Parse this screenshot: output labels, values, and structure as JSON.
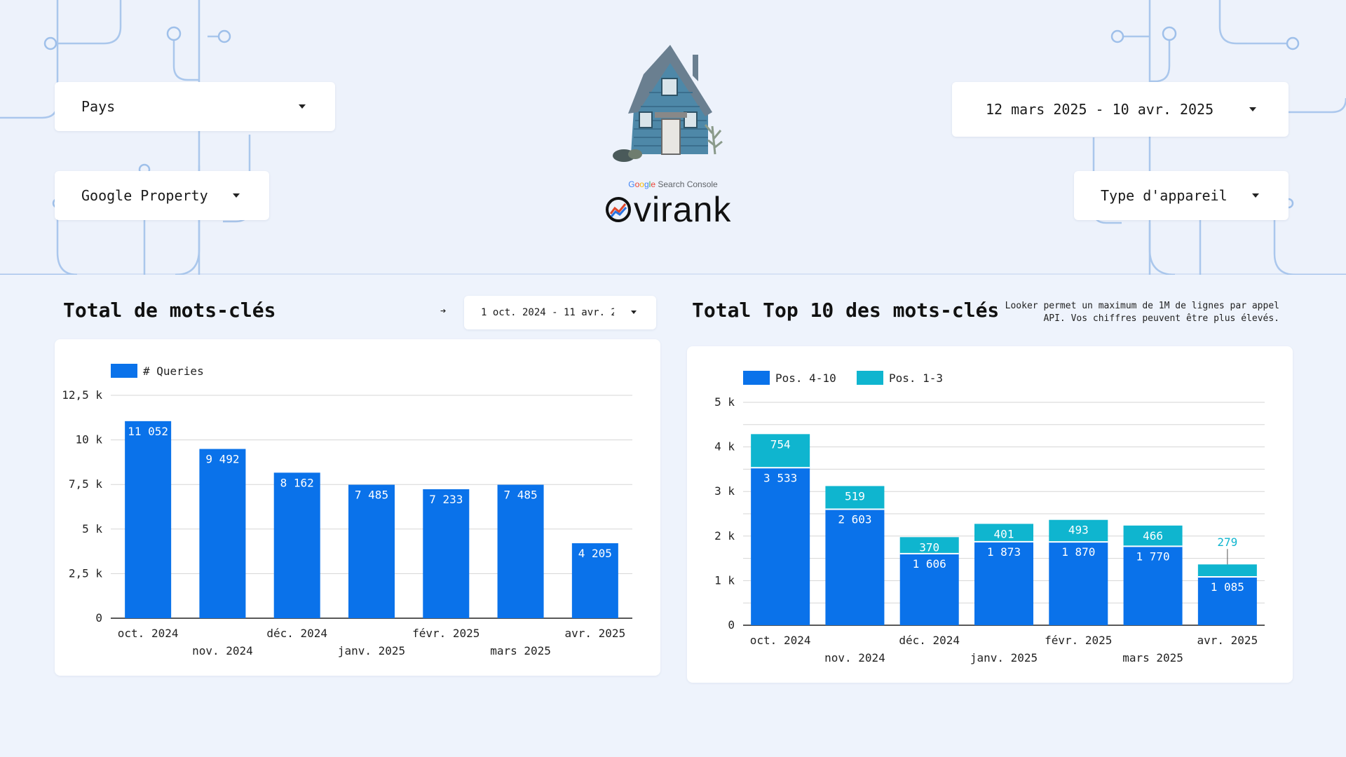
{
  "filters": {
    "country": {
      "label": "Pays"
    },
    "property": {
      "label": "Google Property"
    },
    "date_range": {
      "label": "12 mars 2025 - 10 avr. 2025"
    },
    "device": {
      "label": "Type d'appareil"
    }
  },
  "brand": {
    "product_label_parts": [
      "G",
      "o",
      "o",
      "g",
      "l",
      "e",
      " Search Console"
    ],
    "name": "virank"
  },
  "left_panel": {
    "title": "Total de mots-clés",
    "range_label": "1 oct. 2024 - 11 avr. 2",
    "arrow": "➔"
  },
  "right_panel": {
    "title": "Total Top 10 des mots-clés",
    "note": "Looker permet un maximum de 1M de lignes par appel API. Vos chiffres peuvent être plus élevés."
  },
  "colors": {
    "blue": "#0a72ea",
    "teal": "#0fb5cf",
    "grid": "#d5d5d5"
  },
  "chart_data": [
    {
      "type": "bar",
      "categories": [
        "oct. 2024",
        "nov. 2024",
        "déc. 2024",
        "janv. 2025",
        "févr. 2025",
        "mars 2025",
        "avr. 2025"
      ],
      "series": [
        {
          "name": "# Queries",
          "values": [
            11052,
            9492,
            8162,
            7485,
            7233,
            7485,
            4205
          ]
        }
      ],
      "data_labels": [
        "11 052",
        "9 492",
        "8 162",
        "7 485",
        "7 233",
        "7 485",
        "4 205"
      ],
      "yticks": [
        "0",
        "2,5 k",
        "5 k",
        "7,5 k",
        "10 k",
        "12,5 k"
      ],
      "ylim": [
        0,
        12500
      ],
      "legend": "top-left",
      "grid": true
    },
    {
      "type": "bar",
      "stacked": true,
      "categories": [
        "oct. 2024",
        "nov. 2024",
        "déc. 2024",
        "janv. 2025",
        "févr. 2025",
        "mars 2025",
        "avr. 2025"
      ],
      "series": [
        {
          "name": "Pos. 4-10",
          "values": [
            3533,
            2603,
            1606,
            1873,
            1870,
            1770,
            1085
          ],
          "labels": [
            "3 533",
            "2 603",
            "1 606",
            "1 873",
            "1 870",
            "1 770",
            "1 085"
          ]
        },
        {
          "name": "Pos. 1-3",
          "values": [
            754,
            519,
            370,
            401,
            493,
            466,
            279
          ],
          "labels": [
            "754",
            "519",
            "370",
            "401",
            "493",
            "466",
            "279"
          ]
        }
      ],
      "yticks": [
        "0",
        "1 k",
        "2 k",
        "3 k",
        "4 k",
        "5 k"
      ],
      "ylim": [
        0,
        5000
      ],
      "legend": "top-left",
      "grid": true
    }
  ]
}
